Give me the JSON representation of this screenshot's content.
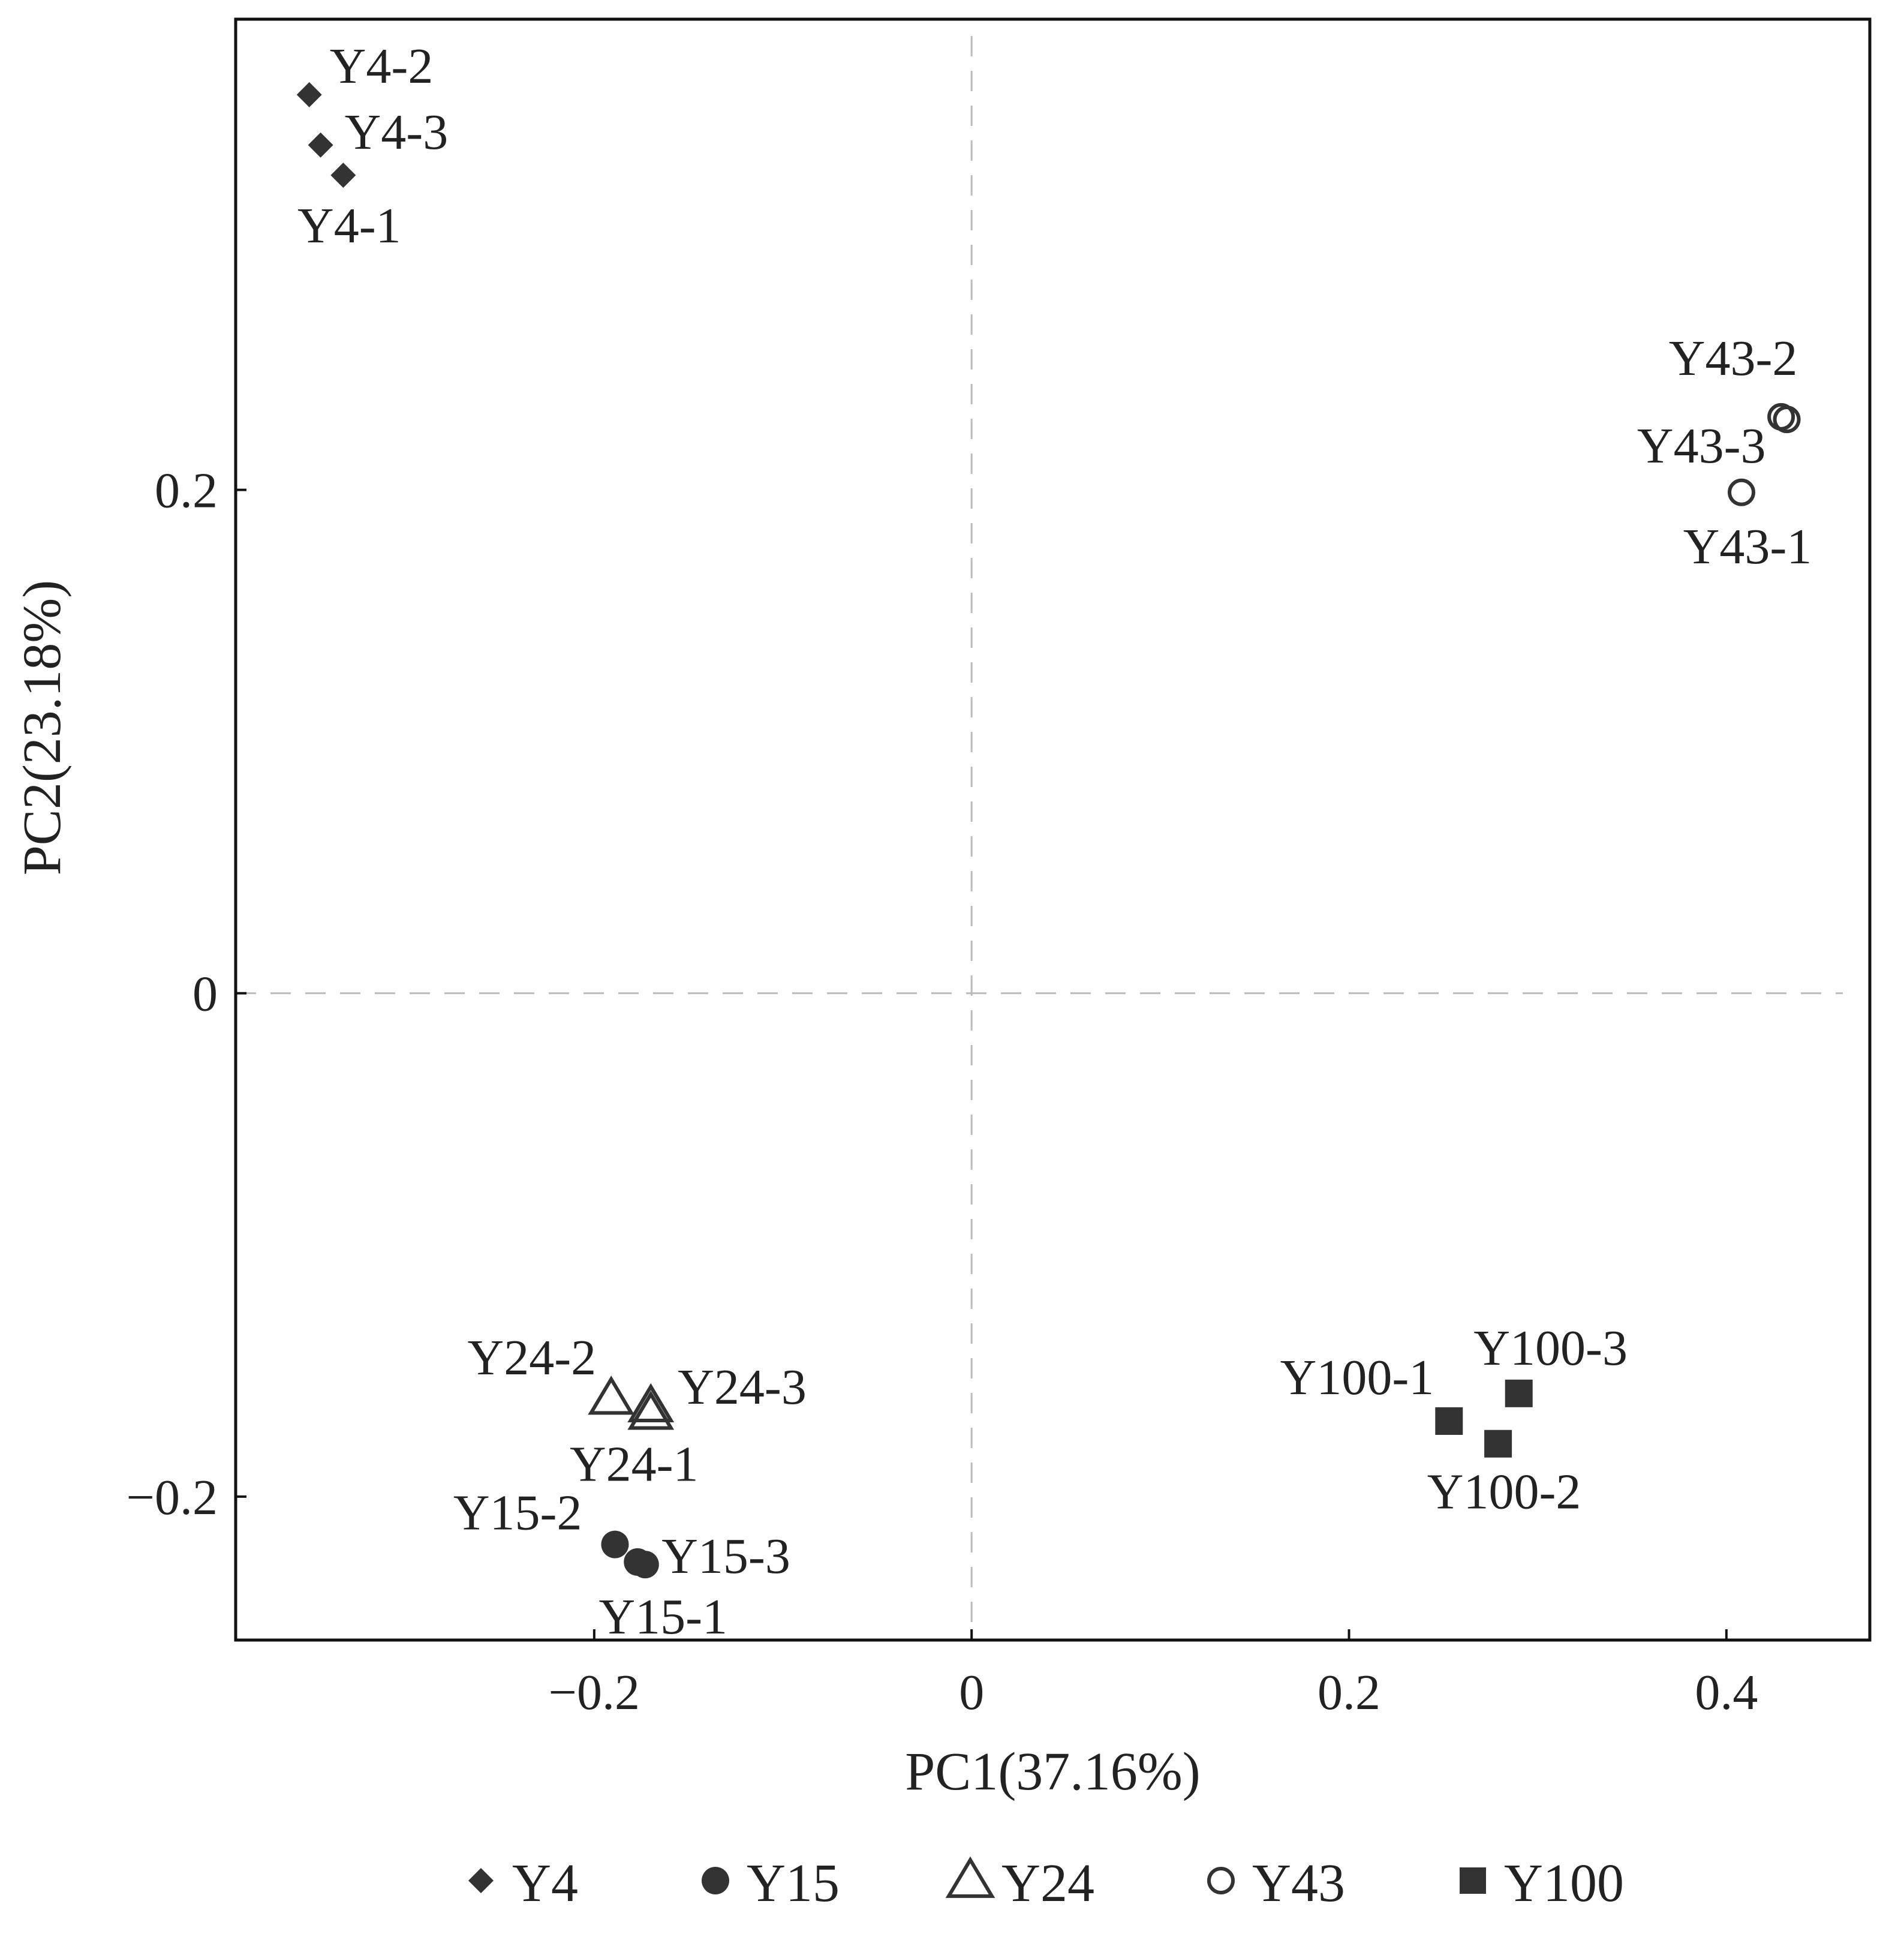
{
  "chart_data": {
    "type": "scatter",
    "title": "",
    "xlabel": "PC1(37.16%)",
    "ylabel": "PC2(23.18%)",
    "xlim": [
      -0.39,
      0.476
    ],
    "ylim": [
      -0.257,
      0.387
    ],
    "xticks": [
      -0.2,
      0,
      0.2,
      0.4
    ],
    "xtick_labels": [
      "−0.2",
      "0",
      "0.2",
      "0.4"
    ],
    "yticks": [
      -0.2,
      0,
      0.2
    ],
    "ytick_labels": [
      "−0.2",
      "0",
      "0.2"
    ],
    "reference_lines": {
      "x": 0,
      "y": 0,
      "style": "dashed"
    },
    "grid": false,
    "legend_position": "bottom",
    "series": [
      {
        "name": "Y4",
        "marker": "diamond",
        "filled": true,
        "color": "#333333",
        "points": [
          {
            "label": "Y4-2",
            "x": -0.351,
            "y": 0.357
          },
          {
            "label": "Y4-3",
            "x": -0.345,
            "y": 0.337
          },
          {
            "label": "Y4-1",
            "x": -0.333,
            "y": 0.325
          }
        ]
      },
      {
        "name": "Y15",
        "marker": "circle",
        "filled": true,
        "color": "#333333",
        "points": [
          {
            "label": "Y15-2",
            "x": -0.189,
            "y": -0.219
          },
          {
            "label": "Y15-3",
            "x": -0.177,
            "y": -0.226
          },
          {
            "label": "Y15-1",
            "x": -0.173,
            "y": -0.227
          }
        ]
      },
      {
        "name": "Y24",
        "marker": "triangle",
        "filled": false,
        "color": "#333333",
        "points": [
          {
            "label": "Y24-2",
            "x": -0.191,
            "y": -0.161
          },
          {
            "label": "Y24-3",
            "x": -0.17,
            "y": -0.164
          },
          {
            "label": "Y24-1",
            "x": -0.17,
            "y": -0.167
          }
        ]
      },
      {
        "name": "Y43",
        "marker": "circle",
        "filled": false,
        "color": "#333333",
        "points": [
          {
            "label": "Y43-2",
            "x": 0.429,
            "y": 0.229
          },
          {
            "label": "Y43-3",
            "x": 0.432,
            "y": 0.228
          },
          {
            "label": "Y43-1",
            "x": 0.408,
            "y": 0.199
          }
        ]
      },
      {
        "name": "Y100",
        "marker": "square",
        "filled": true,
        "color": "#333333",
        "points": [
          {
            "label": "Y100-1",
            "x": 0.253,
            "y": -0.17
          },
          {
            "label": "Y100-3",
            "x": 0.29,
            "y": -0.159
          },
          {
            "label": "Y100-2",
            "x": 0.279,
            "y": -0.179
          }
        ]
      }
    ]
  }
}
